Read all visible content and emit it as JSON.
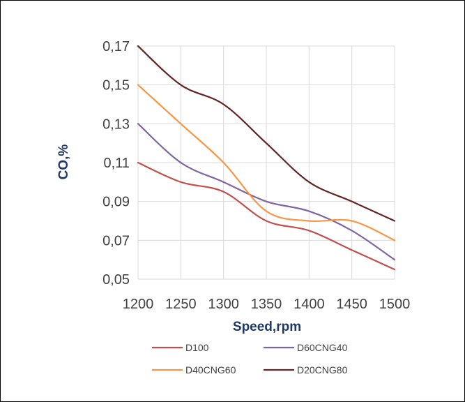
{
  "chart_data": {
    "type": "line",
    "title": "",
    "xlabel": "Speed,rpm",
    "ylabel": "CO,%",
    "x": [
      1200,
      1250,
      1300,
      1350,
      1400,
      1450,
      1500
    ],
    "xlim": [
      1200,
      1500
    ],
    "ylim": [
      0.05,
      0.17
    ],
    "x_ticks": [
      "1200",
      "1250",
      "1300",
      "1350",
      "1400",
      "1450",
      "1500"
    ],
    "y_ticks": [
      "0,05",
      "0,07",
      "0,09",
      "0,11",
      "0,13",
      "0,15",
      "0,17"
    ],
    "grid": true,
    "legend_position": "bottom",
    "series": [
      {
        "name": "D100",
        "color": "#c0504d",
        "values": [
          0.11,
          0.1,
          0.095,
          0.08,
          0.075,
          0.065,
          0.055
        ]
      },
      {
        "name": "D60CNG40",
        "color": "#8064a2",
        "values": [
          0.13,
          0.11,
          0.1,
          0.09,
          0.085,
          0.075,
          0.06
        ]
      },
      {
        "name": "D40CNG60",
        "color": "#f79646",
        "values": [
          0.15,
          0.13,
          0.11,
          0.085,
          0.08,
          0.08,
          0.07
        ]
      },
      {
        "name": "D20CNG80",
        "color": "#632523",
        "values": [
          0.17,
          0.15,
          0.14,
          0.12,
          0.1,
          0.09,
          0.08
        ]
      }
    ]
  }
}
